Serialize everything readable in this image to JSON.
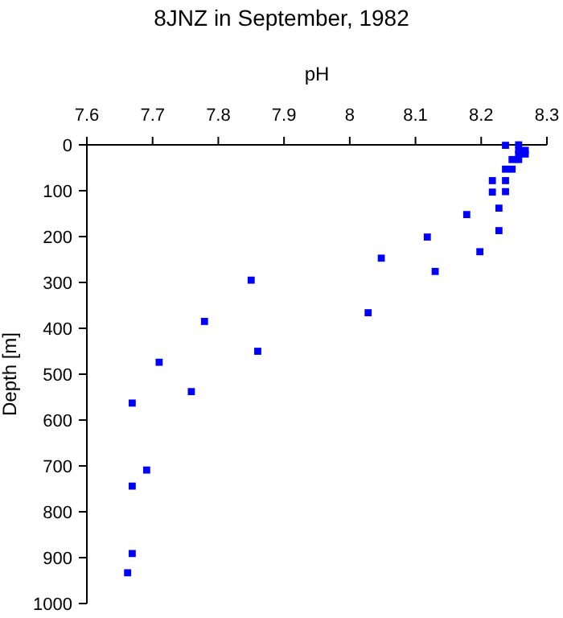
{
  "chart_data": {
    "type": "scatter",
    "title": "8JNZ in September, 1982",
    "xlabel": "pH",
    "ylabel": "Depth [m]",
    "marker": "square",
    "grid": false,
    "xlim": [
      7.6,
      8.3
    ],
    "xticks": [
      7.6,
      7.7,
      7.8,
      7.9,
      8,
      8.1,
      8.2,
      8.3
    ],
    "ylim": [
      1000,
      0
    ],
    "yticks": [
      0,
      100,
      200,
      300,
      400,
      500,
      600,
      700,
      800,
      900,
      1000
    ],
    "series": [
      {
        "color": "#0000ff",
        "x": [
          8.237,
          8.257,
          8.257,
          8.267,
          8.257,
          8.267,
          8.247,
          8.257,
          8.237,
          8.247,
          8.217,
          8.237,
          8.217,
          8.237,
          8.227,
          8.178,
          8.227,
          8.118,
          8.198,
          8.048,
          8.13,
          7.85,
          8.028,
          7.779,
          7.86,
          7.71,
          7.759,
          7.669,
          7.691,
          7.669,
          7.669,
          7.662
        ],
        "values": [
          1,
          0,
          12,
          12,
          20,
          20,
          32,
          32,
          53,
          53,
          78,
          78,
          103,
          102,
          138,
          152,
          187,
          201,
          233,
          247,
          276,
          295,
          366,
          385,
          450,
          474,
          538,
          563,
          709,
          744,
          891,
          933
        ]
      }
    ]
  }
}
